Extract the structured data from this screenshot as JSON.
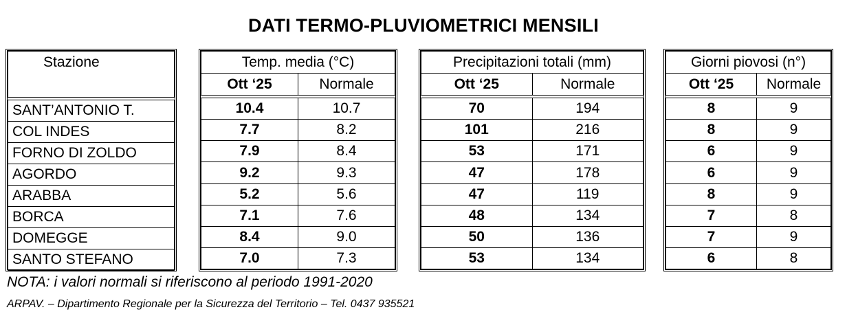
{
  "title": "DATI TERMO-PLUVIOMETRICI MENSILI",
  "station_header": "Stazione",
  "groups": {
    "temp": {
      "header": "Temp. media (°C)",
      "col_month": "Ott ‘25",
      "col_normal": "Normale"
    },
    "precip": {
      "header": "Precipitazioni totali (mm)",
      "col_month": "Ott ‘25",
      "col_normal": "Normale"
    },
    "rain_days": {
      "header": "Giorni piovosi (n°)",
      "col_month": "Ott ‘25",
      "col_normal": "Normale"
    }
  },
  "rows": [
    {
      "station": "SANT’ANTONIO T.",
      "temp": "10.4",
      "temp_normal": "10.7",
      "precip": "70",
      "precip_normal": "194",
      "days": "8",
      "days_normal": "9"
    },
    {
      "station": "COL INDES",
      "temp": "7.7",
      "temp_normal": "8.2",
      "precip": "101",
      "precip_normal": "216",
      "days": "8",
      "days_normal": "9"
    },
    {
      "station": "FORNO DI ZOLDO",
      "temp": "7.9",
      "temp_normal": "8.4",
      "precip": "53",
      "precip_normal": "171",
      "days": "6",
      "days_normal": "9"
    },
    {
      "station": "AGORDO",
      "temp": "9.2",
      "temp_normal": "9.3",
      "precip": "47",
      "precip_normal": "178",
      "days": "6",
      "days_normal": "9"
    },
    {
      "station": "ARABBA",
      "temp": "5.2",
      "temp_normal": "5.6",
      "precip": "47",
      "precip_normal": "119",
      "days": "8",
      "days_normal": "9"
    },
    {
      "station": "BORCA",
      "temp": "7.1",
      "temp_normal": "7.6",
      "precip": "48",
      "precip_normal": "134",
      "days": "7",
      "days_normal": "8"
    },
    {
      "station": "DOMEGGE",
      "temp": "8.4",
      "temp_normal": "9.0",
      "precip": "50",
      "precip_normal": "136",
      "days": "7",
      "days_normal": "9"
    },
    {
      "station": "SANTO STEFANO",
      "temp": "7.0",
      "temp_normal": "7.3",
      "precip": "53",
      "precip_normal": "134",
      "days": "6",
      "days_normal": "8"
    }
  ],
  "note": "NOTA: i valori normali si riferiscono al periodo 1991-2020",
  "footer": "ARPAV. – Dipartimento Regionale per la Sicurezza del Territorio – Tel. 0437 935521"
}
